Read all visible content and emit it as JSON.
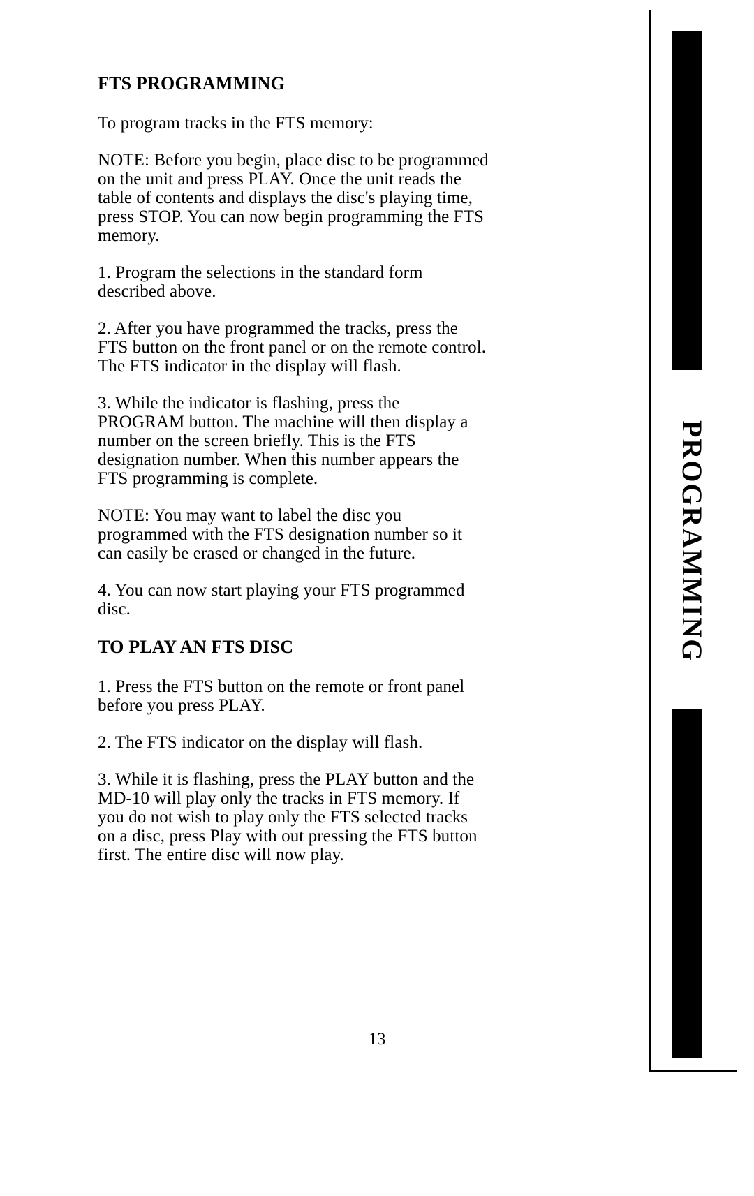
{
  "sidebar": {
    "label": "PROGRAMMING",
    "text_color": "#000000",
    "block_color": "#000000",
    "border_color": "#000000",
    "label_fontsize": 40
  },
  "page": {
    "background_color": "#ffffff",
    "text_color": "#000000",
    "body_fontsize": 25,
    "heading_fontsize": 26,
    "font_family": "Times New Roman",
    "number": "13"
  },
  "sections": {
    "s1": {
      "heading": "FTS PROGRAMMING",
      "intro": "To program tracks in the FTS memory:",
      "note1": "NOTE: Before you begin, place disc to be programmed on the unit and press PLAY. Once the unit reads the table of contents and displays the disc's playing time, press STOP. You can now begin programming the FTS memory.",
      "step1": "1. Program the selections in the standard form described above.",
      "step2": "2. After you have programmed the tracks, press the FTS button on the front panel or on the remote control. The FTS indicator in the display will flash.",
      "step3": "3. While the indicator is flashing, press the PROGRAM button. The machine will then display a number on the screen briefly. This is the FTS designation number. When this number appears the FTS programming is complete.",
      "note2": "NOTE: You may want to label the disc you programmed with the FTS designation number so it can easily be erased or changed in the future.",
      "step4": "4. You can now start playing your FTS programmed disc."
    },
    "s2": {
      "heading": "TO PLAY AN FTS DISC",
      "step1": "1. Press the FTS button on the remote or front panel before you press PLAY.",
      "step2": "2. The FTS indicator on the display will flash.",
      "step3": "3. While it is flashing, press the PLAY button and the MD-10 will play only the tracks in FTS memory. If you do not wish to play only the FTS selected tracks on a disc, press Play with out pressing the FTS button first. The entire disc will now play."
    }
  }
}
